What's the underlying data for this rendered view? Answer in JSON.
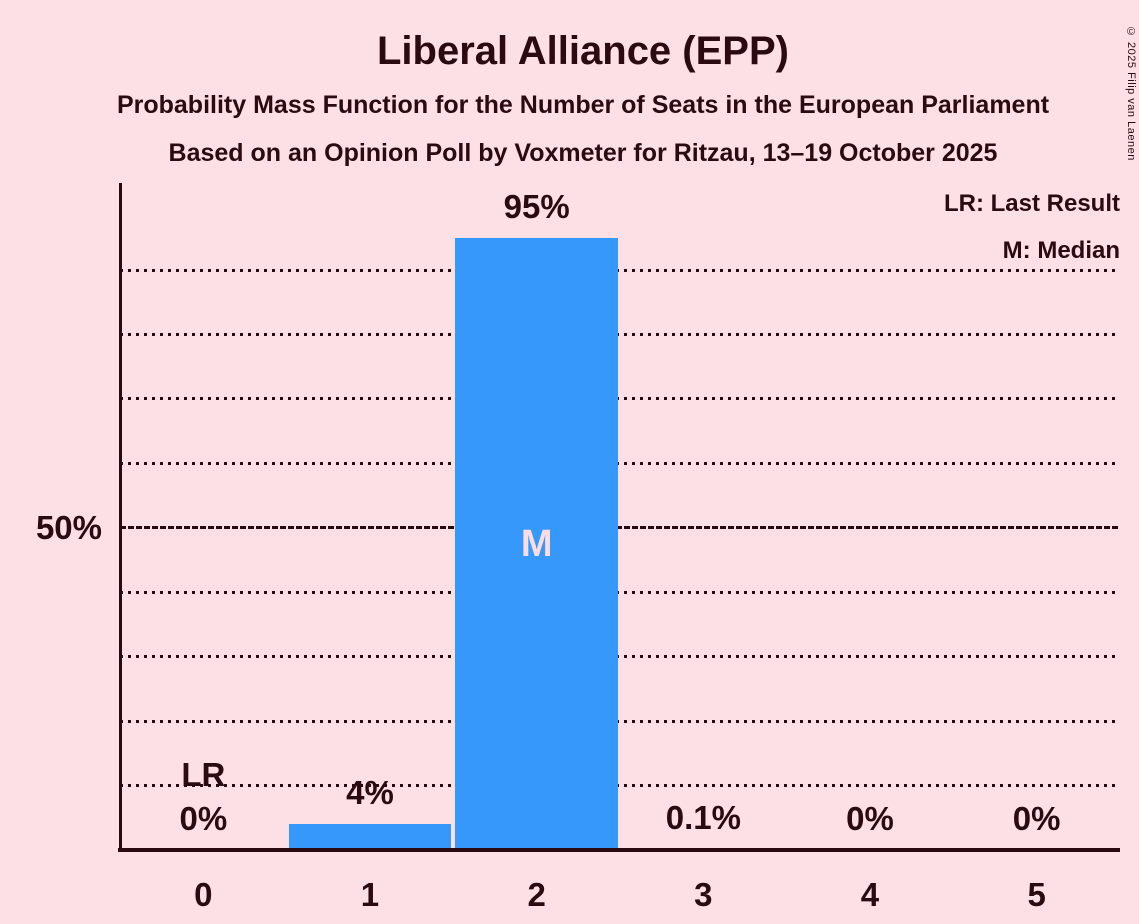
{
  "page": {
    "title": "Liberal Alliance (EPP)",
    "subtitle": "Probability Mass Function for the Number of Seats in the European Parliament",
    "source_line": "Based on an Opinion Poll by Voxmeter for Ritzau, 13–19 October 2025",
    "copyright": "© 2025 Filip van Laenen"
  },
  "legend": {
    "lr": "LR: Last Result",
    "m": "M: Median"
  },
  "colors": {
    "background": "#FCE0E6",
    "bar": "#3598FA",
    "ink": "#2B0A12",
    "median_letter": "#FADCE2"
  },
  "chart_data": {
    "type": "bar",
    "title": "Liberal Alliance (EPP)",
    "categories": [
      "0",
      "1",
      "2",
      "3",
      "4",
      "5"
    ],
    "values": [
      0,
      4,
      95,
      0.1,
      0,
      0
    ],
    "value_labels": [
      "0%",
      "4%",
      "95%",
      "0.1%",
      "0%",
      "0%"
    ],
    "xlabel": "",
    "ylabel": "",
    "ylim": [
      0,
      103.5
    ],
    "y_tick": {
      "value": 50,
      "label": "50%"
    },
    "gridlines_pct": [
      10,
      20,
      30,
      40,
      50,
      60,
      70,
      80,
      90
    ],
    "solid_gridline_pct": 50,
    "grid": "horizontal dotted, dense solid line at 50%",
    "legend_position": "top-right",
    "median_index": 2,
    "median_marker": "M",
    "last_result_index": 0,
    "last_result_marker": "LR"
  }
}
